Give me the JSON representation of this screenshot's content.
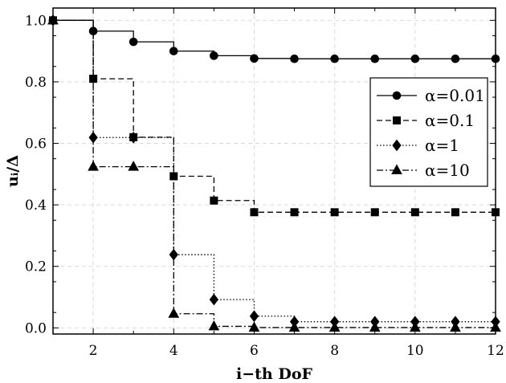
{
  "chart_data": {
    "type": "line",
    "title": "",
    "xlabel": "i−th DoF",
    "ylabel": "uᵢ/Δ",
    "xlim": [
      1,
      12
    ],
    "ylim": [
      -0.02,
      1.04
    ],
    "xticks": [
      2,
      4,
      6,
      8,
      10,
      12
    ],
    "yticks": [
      0.0,
      0.2,
      0.4,
      0.6,
      0.8,
      1.0
    ],
    "xtick_labels": [
      "2",
      "4",
      "6",
      "8",
      "10",
      "12"
    ],
    "ytick_labels": [
      "0.0",
      "0.2",
      "0.4",
      "0.6",
      "0.8",
      "1.0"
    ],
    "grid": true,
    "legend_position": "right",
    "step": true,
    "series": [
      {
        "name": "α=0.01",
        "marker": "circle",
        "dash": "solid",
        "x": [
          1,
          2,
          3,
          4,
          5,
          6,
          7,
          8,
          9,
          10,
          11,
          12
        ],
        "values": [
          1.0,
          0.965,
          0.93,
          0.9,
          0.885,
          0.876,
          0.875,
          0.875,
          0.875,
          0.875,
          0.875,
          0.875
        ]
      },
      {
        "name": "α=0.1",
        "marker": "square",
        "dash": "dashed",
        "x": [
          1,
          2,
          3,
          4,
          5,
          6,
          7,
          8,
          9,
          10,
          11,
          12
        ],
        "values": [
          1.0,
          0.81,
          0.62,
          0.493,
          0.414,
          0.376,
          0.376,
          0.376,
          0.376,
          0.376,
          0.376,
          0.376
        ]
      },
      {
        "name": "α=1",
        "marker": "diamond",
        "dash": "dotted",
        "x": [
          1,
          2,
          3,
          4,
          5,
          6,
          7,
          8,
          9,
          10,
          11,
          12
        ],
        "values": [
          1.0,
          0.619,
          0.619,
          0.238,
          0.092,
          0.038,
          0.02,
          0.02,
          0.02,
          0.02,
          0.02,
          0.02
        ]
      },
      {
        "name": "α=10",
        "marker": "triangle",
        "dash": "dashdot",
        "x": [
          1,
          2,
          3,
          4,
          5,
          6,
          7,
          8,
          9,
          10,
          11,
          12
        ],
        "values": [
          1.0,
          0.524,
          0.524,
          0.046,
          0.005,
          0.001,
          0.001,
          0.001,
          0.001,
          0.001,
          0.001,
          0.001
        ]
      }
    ]
  }
}
